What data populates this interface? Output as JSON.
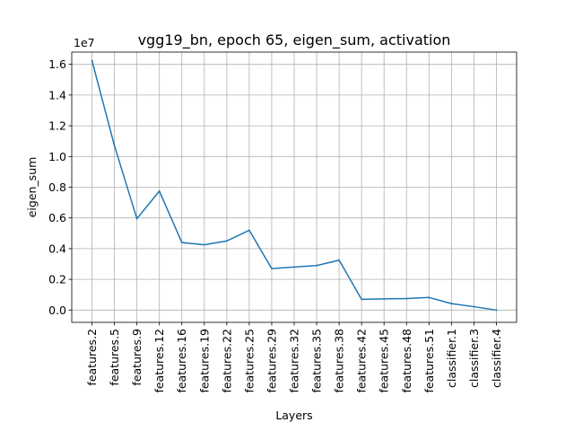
{
  "chart_data": {
    "type": "line",
    "title": "vgg19_bn, epoch 65, eigen_sum, activation",
    "xlabel": "Layers",
    "ylabel": "eigen_sum",
    "y_offset_label": "1e7",
    "y_scale": 10000000,
    "ylim": [
      -0.08,
      1.68
    ],
    "yticks": [
      0.0,
      0.2,
      0.4,
      0.6,
      0.8,
      1.0,
      1.2,
      1.4,
      1.6
    ],
    "ytick_labels": [
      "0.0",
      "0.2",
      "0.4",
      "0.6",
      "0.8",
      "1.0",
      "1.2",
      "1.4",
      "1.6"
    ],
    "grid": true,
    "categories": [
      "features.2",
      "features.5",
      "features.9",
      "features.12",
      "features.16",
      "features.19",
      "features.22",
      "features.25",
      "features.29",
      "features.32",
      "features.35",
      "features.38",
      "features.42",
      "features.45",
      "features.48",
      "features.51",
      "classifier.1",
      "classifier.3",
      "classifier.4"
    ],
    "series": [
      {
        "color": "#1f77b4",
        "values": [
          16250000,
          10700000,
          5950000,
          7750000,
          4400000,
          4250000,
          4500000,
          5200000,
          2700000,
          2800000,
          2900000,
          3250000,
          700000,
          730000,
          750000,
          820000,
          420000,
          220000,
          0
        ]
      }
    ]
  }
}
